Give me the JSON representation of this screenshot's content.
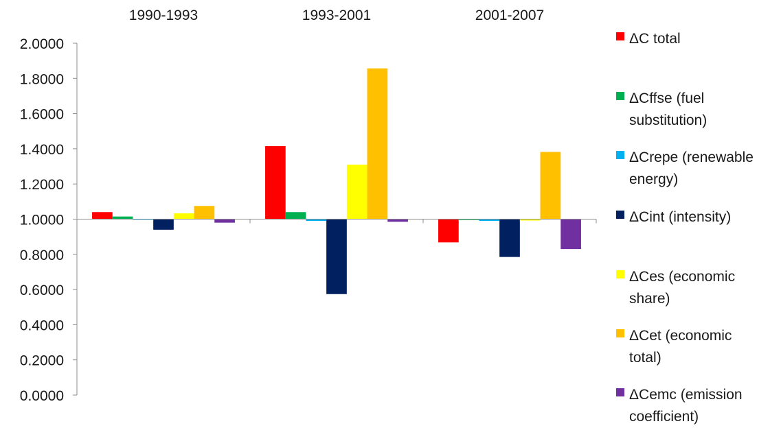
{
  "chart_data": {
    "type": "bar",
    "categories": [
      "1990-1993",
      "1993-2001",
      "2001-2007"
    ],
    "baseline": 1.0,
    "ylim": [
      0,
      2.0
    ],
    "yticks": [
      "0.0000",
      "0.2000",
      "0.4000",
      "0.6000",
      "0.8000",
      "1.0000",
      "1.2000",
      "1.4000",
      "1.6000",
      "1.8000",
      "2.0000"
    ],
    "grid": false,
    "legend_position": "right",
    "series": [
      {
        "name": "ΔC total",
        "name_lines": [
          "ΔC total"
        ],
        "color": "#ff0000",
        "values": [
          1.04,
          1.415,
          0.868
        ]
      },
      {
        "name": "ΔCffse (fuel substitution)",
        "name_lines": [
          "ΔCffse (fuel",
          "substitution)"
        ],
        "color": "#00b050",
        "values": [
          1.015,
          1.04,
          0.995
        ]
      },
      {
        "name": "ΔCrepe (renewable energy)",
        "name_lines": [
          "ΔCrepe (renewable",
          "energy)"
        ],
        "color": "#00b0f0",
        "values": [
          1.0,
          0.99,
          0.99
        ]
      },
      {
        "name": "ΔCint (intensity)",
        "name_lines": [
          "ΔCint (intensity)"
        ],
        "color": "#002060",
        "values": [
          0.94,
          0.574,
          0.785
        ]
      },
      {
        "name": "ΔCes (economic share)",
        "name_lines": [
          "ΔCes (economic",
          "share)"
        ],
        "color": "#ffff00",
        "values": [
          1.033,
          1.31,
          0.992
        ]
      },
      {
        "name": "ΔCet (economic total)",
        "name_lines": [
          "ΔCet (economic",
          "total)"
        ],
        "color": "#ffc000",
        "values": [
          1.075,
          1.857,
          1.382
        ]
      },
      {
        "name": "ΔCemc (emission coefficient)",
        "name_lines": [
          "ΔCemc (emission",
          "coefficient)"
        ],
        "color": "#7030a0",
        "values": [
          0.98,
          0.985,
          0.83
        ]
      }
    ]
  }
}
